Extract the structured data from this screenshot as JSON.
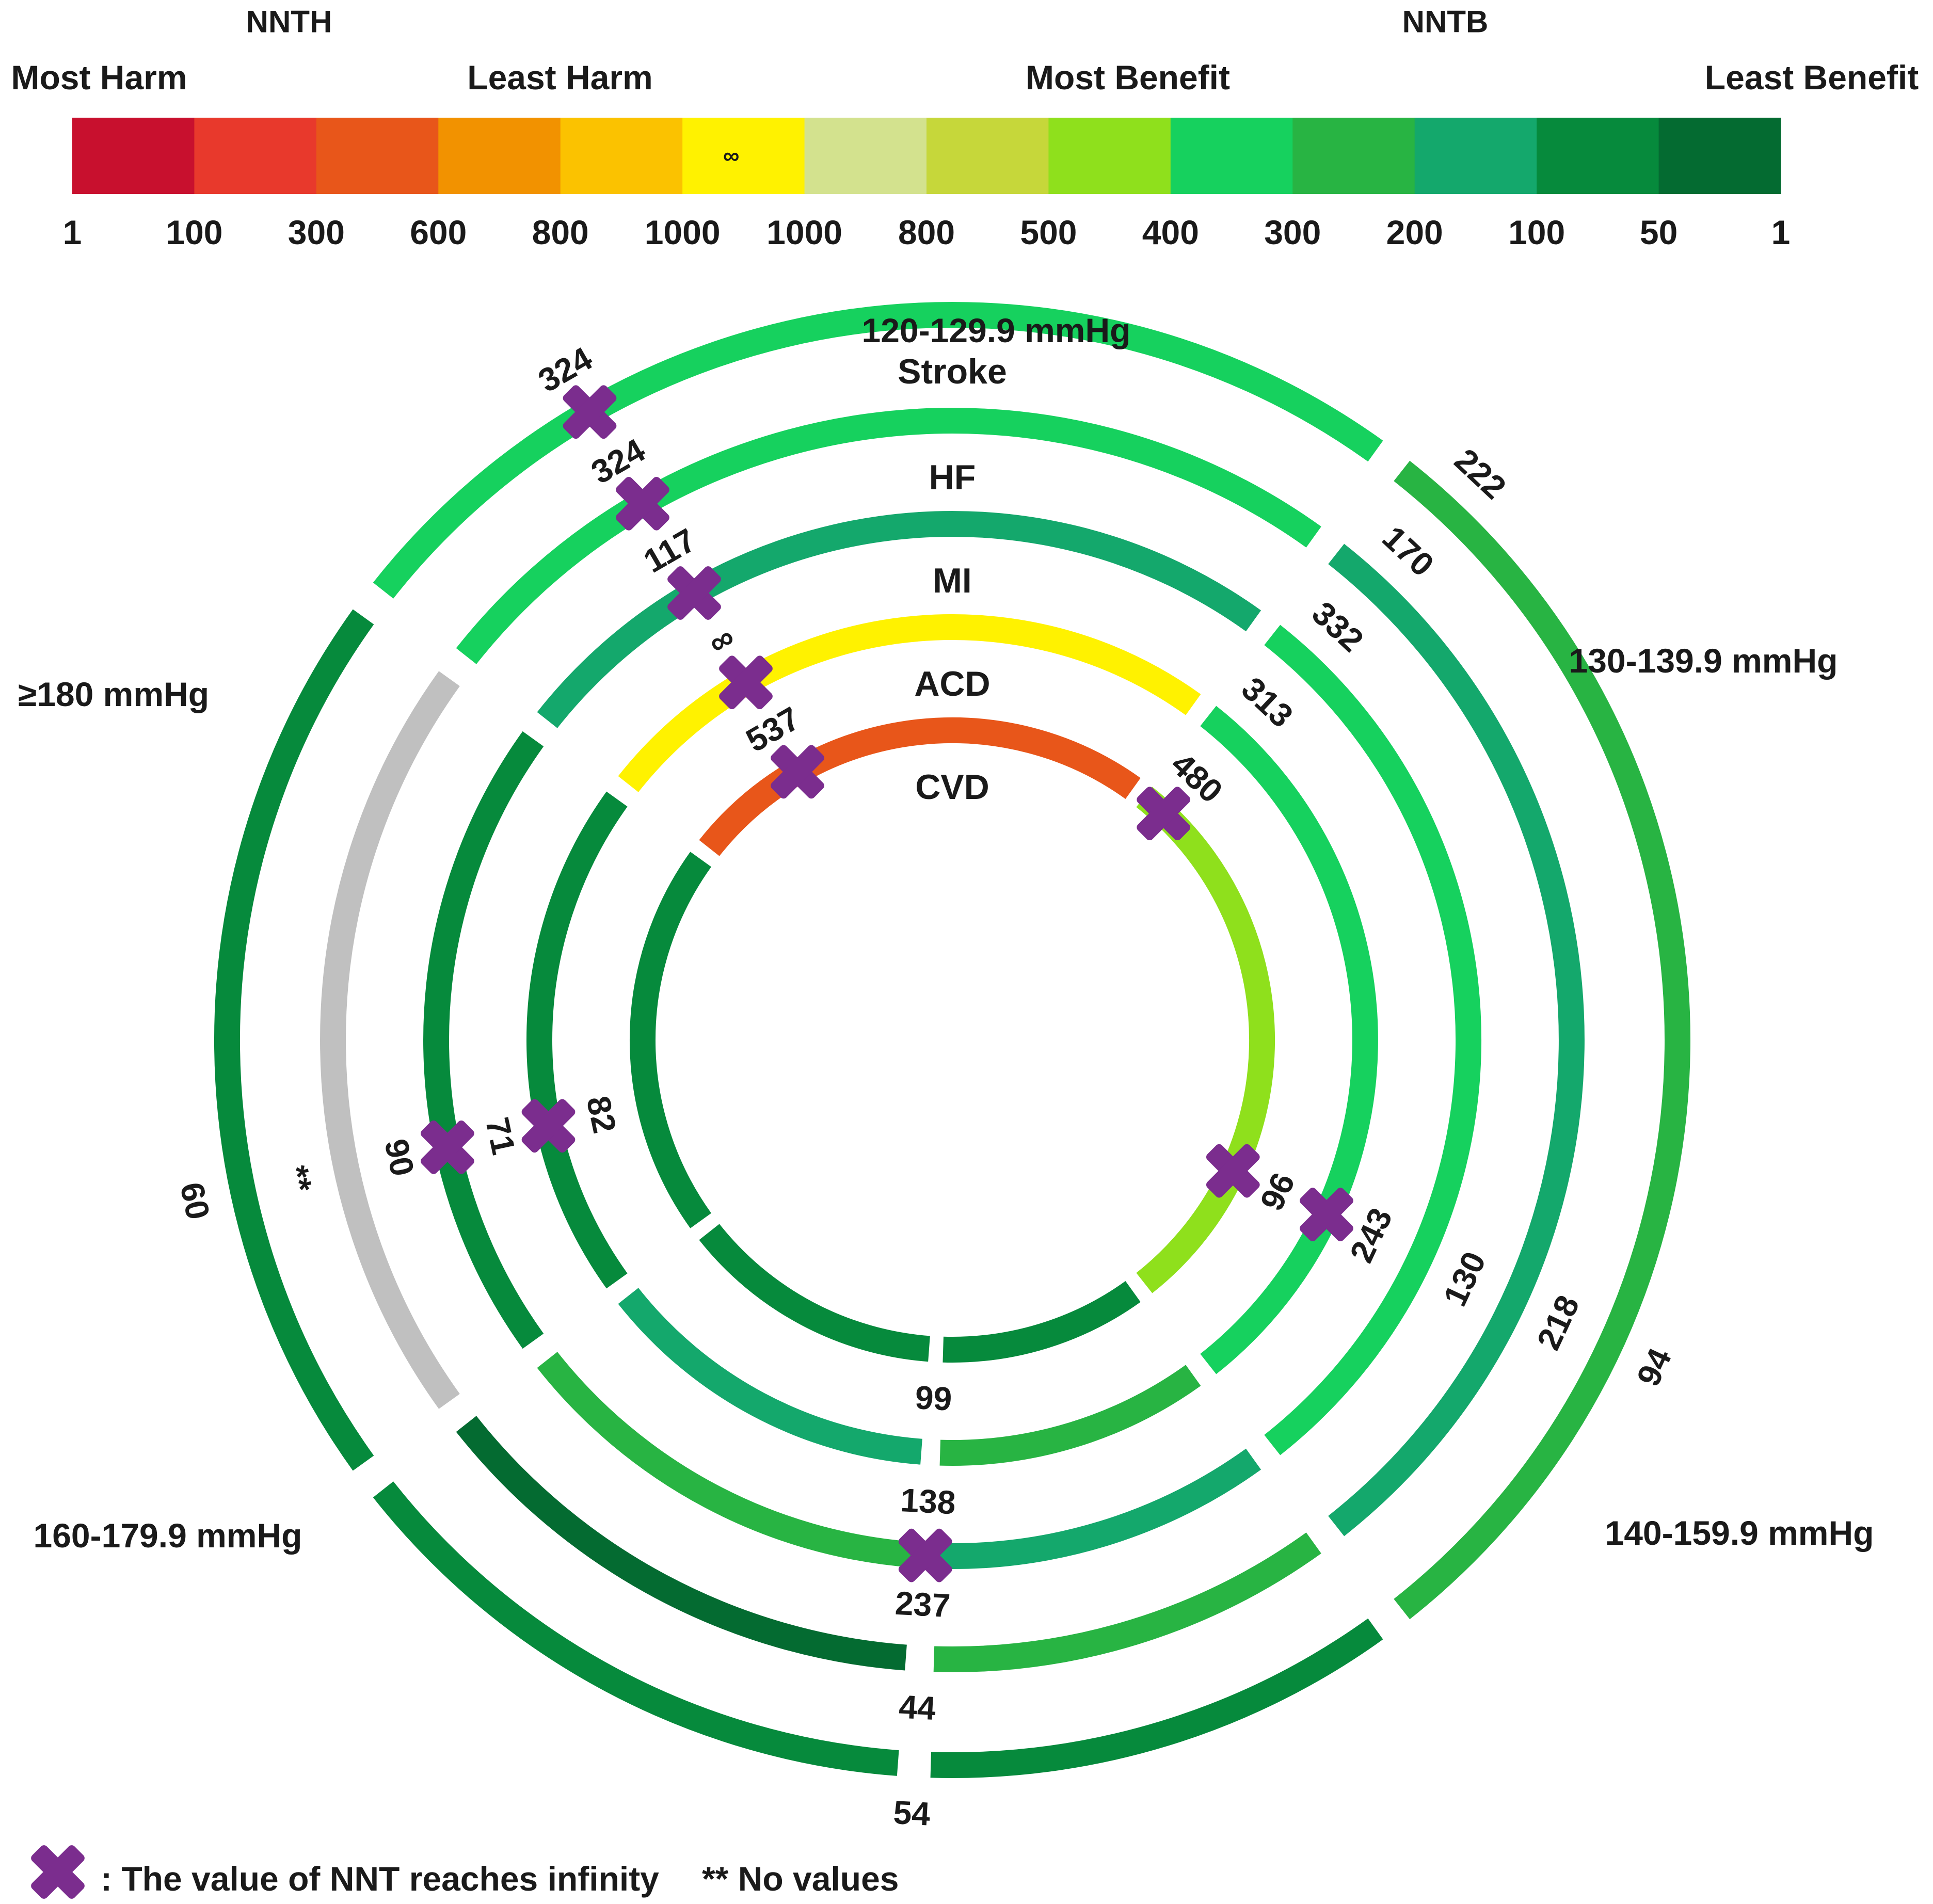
{
  "chart_data": {
    "type": "radial-ring",
    "scale": {
      "nnth_label": "NNTH",
      "nntb_label": "NNTB",
      "end_labels": [
        "Most Harm",
        "Least Harm",
        "Most Benefit",
        "Least Benefit"
      ],
      "colors": [
        "#c8102e",
        "#e8392c",
        "#e8561a",
        "#f29200",
        "#fbc200",
        "#fff200",
        "#d3e28e",
        "#c6d73a",
        "#8fe01c",
        "#16d15e",
        "#28b443",
        "#14a86c",
        "#068a3c",
        "#046b31"
      ],
      "infinity_symbol": "∞",
      "ticks": [
        "1",
        "100",
        "300",
        "600",
        "800",
        "1000",
        "1000",
        "800",
        "500",
        "400",
        "300",
        "200",
        "100",
        "50",
        "1"
      ]
    },
    "periods": [
      "120-129.9 mmHg",
      "130-139.9 mmHg",
      "140-159.9 mmHg",
      "160-179.9 mmHg",
      "≥180 mmHg"
    ],
    "rings": [
      {
        "name": "Stroke",
        "segments": [
          {
            "period": "120-129.9 mmHg",
            "color": "#16d15e",
            "value": "324",
            "infinity": true
          },
          {
            "period": "130-139.9 mmHg",
            "color": "#28b443",
            "value": "222"
          },
          {
            "period": "140-159.9 mmHg",
            "color": "#068a3c",
            "value": "94"
          },
          {
            "period": "160-179.9 mmHg",
            "color": "#068a3c",
            "value": "54"
          },
          {
            "period": "≥180 mmHg",
            "color": "#068a3c",
            "value": "60"
          }
        ]
      },
      {
        "name": "HF",
        "segments": [
          {
            "period": "120-129.9 mmHg",
            "color": "#16d15e",
            "value": "324",
            "infinity": true
          },
          {
            "period": "130-139.9 mmHg",
            "color": "#14a86c",
            "value": "170"
          },
          {
            "period": "140-159.9 mmHg",
            "color": "#28b443",
            "value": "218"
          },
          {
            "period": "160-179.9 mmHg",
            "color": "#046b31",
            "value": "44"
          },
          {
            "period": "≥180 mmHg",
            "color": "#c0c0c0",
            "value": "**"
          }
        ]
      },
      {
        "name": "MI",
        "segments": [
          {
            "period": "120-129.9 mmHg",
            "color": "#14a86c",
            "value": "117",
            "infinity": true
          },
          {
            "period": "130-139.9 mmHg",
            "color": "#16d15e",
            "value": "332"
          },
          {
            "period": "140-159.9 mmHg",
            "color": "#14a86c",
            "value": "130"
          },
          {
            "period": "160-179.9 mmHg",
            "color": "#28b443",
            "value": "237",
            "infinity": true
          },
          {
            "period": "≥180 mmHg",
            "color": "#068a3c",
            "value": "90",
            "infinity": true
          }
        ]
      },
      {
        "name": "ACD",
        "segments": [
          {
            "period": "120-129.9 mmHg",
            "color": "#fff200",
            "value": "∞",
            "infinity": true
          },
          {
            "period": "130-139.9 mmHg",
            "color": "#16d15e",
            "value": "313"
          },
          {
            "period": "140-159.9 mmHg",
            "color": "#28b443",
            "value": "243",
            "infinity": true
          },
          {
            "period": "160-179.9 mmHg",
            "color": "#14a86c",
            "value": "138"
          },
          {
            "period": "≥180 mmHg",
            "color": "#068a3c",
            "value": "71",
            "infinity": true
          }
        ]
      },
      {
        "name": "CVD",
        "segments": [
          {
            "period": "120-129.9 mmHg",
            "color": "#e8561a",
            "value": "537",
            "infinity": true
          },
          {
            "period": "130-139.9 mmHg",
            "color": "#8fe01c",
            "value": "480",
            "infinity": true
          },
          {
            "period": "140-159.9 mmHg",
            "color": "#068a3c",
            "value": "96",
            "infinity": true
          },
          {
            "period": "160-179.9 mmHg",
            "color": "#068a3c",
            "value": "99"
          },
          {
            "period": "≥180 mmHg",
            "color": "#068a3c",
            "value": "82"
          }
        ]
      }
    ],
    "legend": {
      "marker_text": ":  The value of NNT reaches infinity",
      "no_values_text": "** No values"
    }
  }
}
